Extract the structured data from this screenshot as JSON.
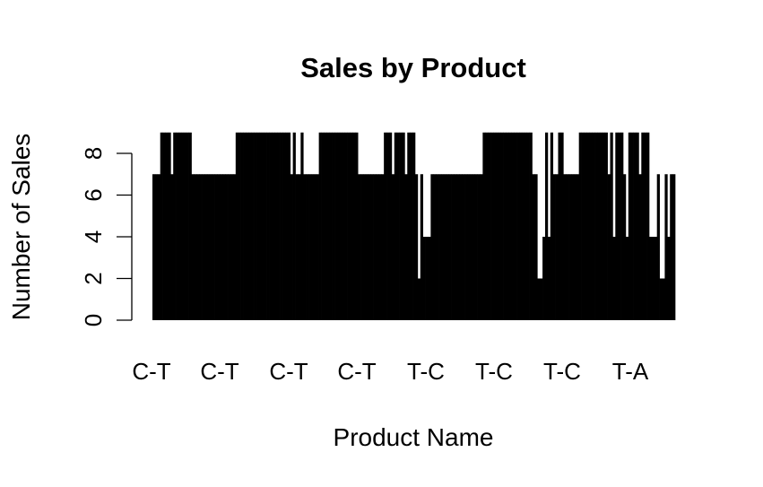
{
  "chart_data": {
    "type": "bar",
    "title": "Sales by Product",
    "xlabel": "Product Name",
    "ylabel": "Number of Sales",
    "ylim": [
      0,
      9
    ],
    "yticks": [
      0,
      2,
      4,
      6,
      8
    ],
    "xtick_labels": [
      "C-T",
      "C-T",
      "C-T",
      "C-T",
      "T-C",
      "T-C",
      "T-C",
      "T-A"
    ],
    "bar_color": "#000000",
    "grid": false,
    "legend": "none",
    "values": [
      7,
      7,
      7,
      9,
      9,
      9,
      9,
      7,
      9,
      9,
      9,
      9,
      9,
      9,
      9,
      7,
      7,
      7,
      7,
      7,
      7,
      7,
      7,
      7,
      7,
      7,
      7,
      7,
      7,
      7,
      7,
      7,
      9,
      9,
      9,
      9,
      9,
      9,
      9,
      9,
      9,
      9,
      9,
      9,
      9,
      9,
      9,
      9,
      9,
      9,
      9,
      9,
      9,
      7,
      9,
      7,
      7,
      9,
      7,
      7,
      7,
      7,
      7,
      7,
      9,
      9,
      9,
      9,
      9,
      9,
      9,
      9,
      9,
      9,
      9,
      9,
      9,
      9,
      9,
      7,
      7,
      7,
      7,
      7,
      7,
      7,
      7,
      7,
      7,
      9,
      9,
      9,
      7,
      9,
      9,
      9,
      9,
      7,
      9,
      9,
      9,
      7,
      2,
      7,
      4,
      4,
      4,
      7,
      7,
      7,
      7,
      7,
      7,
      7,
      7,
      7,
      7,
      7,
      7,
      7,
      7,
      7,
      7,
      7,
      7,
      7,
      7,
      9,
      9,
      9,
      9,
      9,
      9,
      9,
      9,
      9,
      9,
      9,
      9,
      9,
      9,
      9,
      9,
      9,
      9,
      9,
      7,
      7,
      2,
      2,
      4,
      9,
      4,
      9,
      7,
      7,
      9,
      9,
      7,
      7,
      7,
      7,
      7,
      7,
      9,
      9,
      9,
      9,
      9,
      9,
      9,
      9,
      9,
      9,
      9,
      7,
      9,
      4,
      9,
      9,
      9,
      7,
      4,
      9,
      9,
      9,
      9,
      7,
      9,
      9,
      9,
      4,
      4,
      4,
      7,
      2,
      2,
      7,
      4,
      7,
      7
    ]
  }
}
